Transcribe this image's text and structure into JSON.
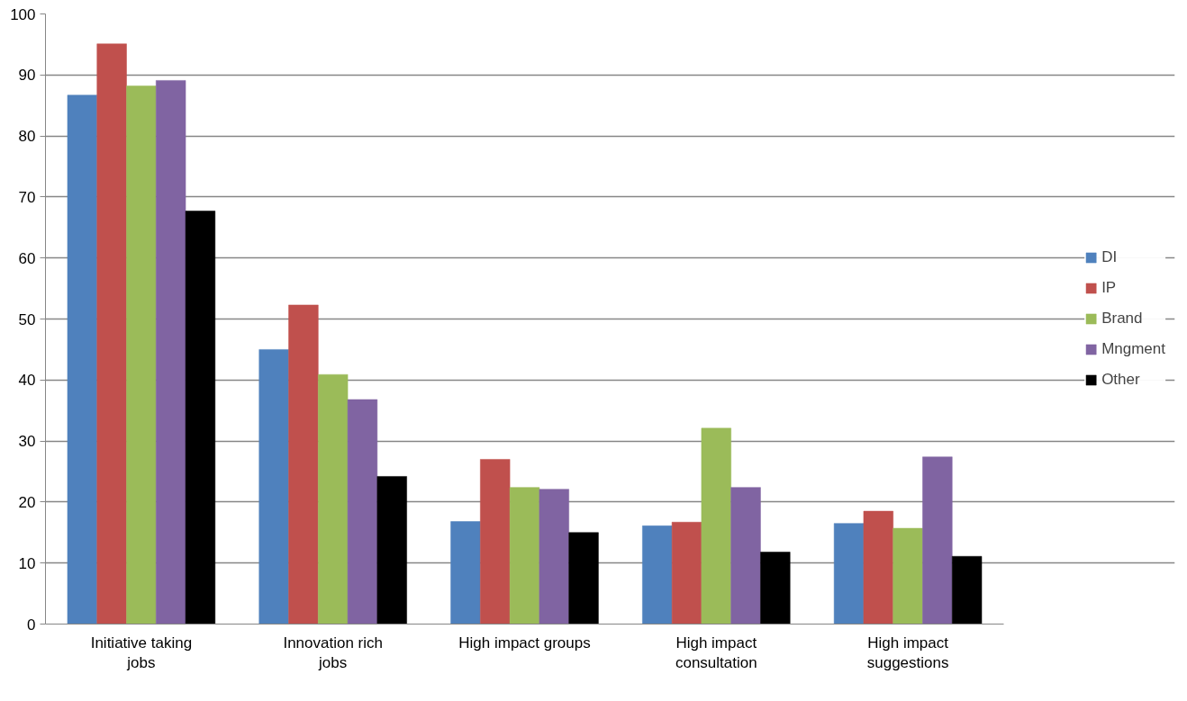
{
  "chart_data": {
    "type": "bar",
    "categories": [
      "Initiative taking jobs",
      "Innovation rich jobs",
      "High impact groups",
      "High impact consultation",
      "High impact suggestions"
    ],
    "series": [
      {
        "name": "DI",
        "color": "#4f81bd",
        "values": [
          86.7,
          45.0,
          16.8,
          16.1,
          16.5
        ]
      },
      {
        "name": "IP",
        "color": "#c0504d",
        "values": [
          95.1,
          52.3,
          27.0,
          16.7,
          18.5
        ]
      },
      {
        "name": "Brand",
        "color": "#9bbb59",
        "values": [
          88.2,
          40.9,
          22.4,
          32.1,
          15.7
        ]
      },
      {
        "name": "Mngment",
        "color": "#8064a2",
        "values": [
          89.1,
          36.8,
          22.1,
          22.4,
          27.4
        ]
      },
      {
        "name": "Other",
        "color": "#000000",
        "values": [
          67.7,
          24.2,
          15.0,
          11.8,
          11.1
        ]
      }
    ],
    "ylim": [
      0,
      100
    ],
    "yticks": [
      0,
      10,
      20,
      30,
      40,
      50,
      60,
      70,
      80,
      90,
      100
    ],
    "grid": "y",
    "legend": "right"
  }
}
